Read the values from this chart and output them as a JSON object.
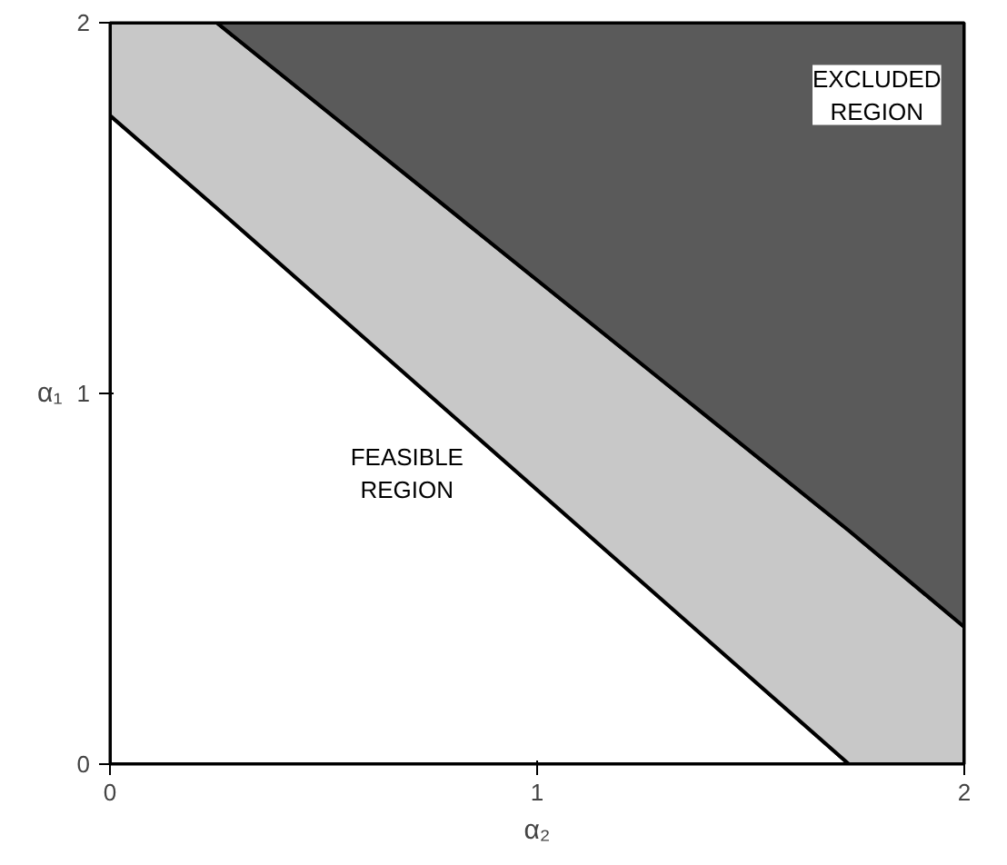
{
  "chart_data": {
    "type": "area",
    "stacked": true,
    "x": [
      0,
      0.25,
      1.73,
      2
    ],
    "series": [
      {
        "color": "#ffffff",
        "values": [
          1.75,
          1.5,
          0,
          0
        ]
      },
      {
        "color": "#c8c8c8",
        "values": [
          0.25,
          0.5,
          0.63,
          0.37
        ]
      },
      {
        "color": "#5a5a5a",
        "values": [
          0,
          0,
          1.37,
          1.63
        ]
      }
    ],
    "xlabel": "α₂",
    "ylabel": "α₁",
    "xlim": [
      0,
      2
    ],
    "ylim": [
      0,
      2
    ],
    "xticks": [
      0,
      1,
      2
    ],
    "yticks": [
      0,
      1,
      2
    ],
    "annotations": [
      "EXCLUDED REGION",
      "FEASIBLE REGION"
    ]
  }
}
